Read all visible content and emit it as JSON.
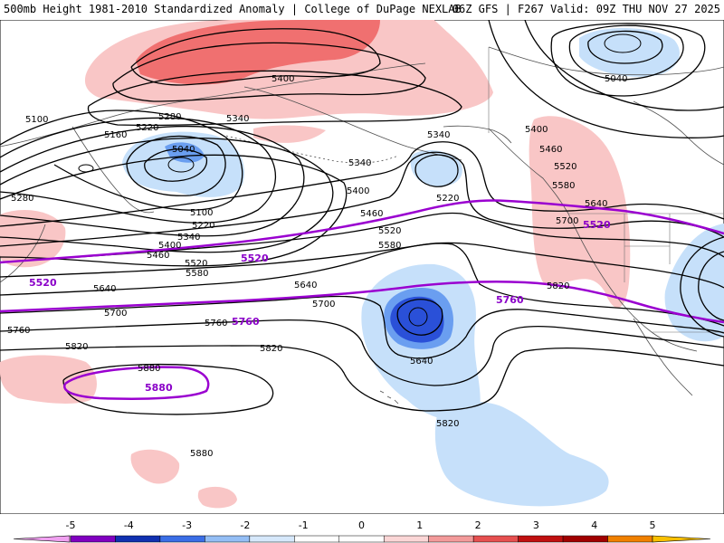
{
  "header": {
    "title_left": "500mb Height 1981-2010 Standardized Anomaly | College of DuPage NEXLAB",
    "title_right": "06Z GFS | F267 Valid: 09Z THU NOV 27 2025"
  },
  "colors": {
    "ref_line": "#9a00d0",
    "contour": "#000000",
    "coast": "#505050",
    "anom_neg1": "#c6e0fa",
    "anom_neg2": "#6a9ef0",
    "anom_neg3": "#2a50d8",
    "anom_pos1": "#f9c6c6",
    "anom_pos2": "#f07070"
  },
  "contour_labels": [
    {
      "id": "l5400a",
      "text": "5400"
    },
    {
      "id": "l5040a",
      "text": "5040"
    },
    {
      "id": "l5100a",
      "text": "5100"
    },
    {
      "id": "l5280a",
      "text": "5280"
    },
    {
      "id": "l5340a",
      "text": "5340"
    },
    {
      "id": "l5220a",
      "text": "5220"
    },
    {
      "id": "l5160a",
      "text": "5160"
    },
    {
      "id": "l5040b",
      "text": "5040"
    },
    {
      "id": "l5280b",
      "text": "5280"
    },
    {
      "id": "l5100b",
      "text": "5100"
    },
    {
      "id": "l5220b",
      "text": "5220"
    },
    {
      "id": "l5340b",
      "text": "5340"
    },
    {
      "id": "l5400b",
      "text": "5400"
    },
    {
      "id": "l5460a",
      "text": "5460"
    },
    {
      "id": "l5520a",
      "text": "5520"
    },
    {
      "id": "l5580a",
      "text": "5580"
    },
    {
      "id": "l5340c",
      "text": "5340"
    },
    {
      "id": "l5340d",
      "text": "5340"
    },
    {
      "id": "l5400c",
      "text": "5400"
    },
    {
      "id": "l5220c",
      "text": "5220"
    },
    {
      "id": "l5460b",
      "text": "5460"
    },
    {
      "id": "l5520b",
      "text": "5520"
    },
    {
      "id": "l5580b",
      "text": "5580"
    },
    {
      "id": "l5400d",
      "text": "5400"
    },
    {
      "id": "l5460c",
      "text": "5460"
    },
    {
      "id": "l5520c",
      "text": "5520"
    },
    {
      "id": "l5580c",
      "text": "5580"
    },
    {
      "id": "l5640a",
      "text": "5640"
    },
    {
      "id": "l5700a",
      "text": "5700"
    },
    {
      "id": "l5640b",
      "text": "5640"
    },
    {
      "id": "l5700b",
      "text": "5700"
    },
    {
      "id": "l5760a",
      "text": "5760"
    },
    {
      "id": "l5640c",
      "text": "5640"
    },
    {
      "id": "l5700c",
      "text": "5700"
    },
    {
      "id": "l5760b",
      "text": "5760"
    },
    {
      "id": "l5820a",
      "text": "5820"
    },
    {
      "id": "l5820b",
      "text": "5820"
    },
    {
      "id": "l5640d",
      "text": "5640"
    },
    {
      "id": "l5820c",
      "text": "5820"
    },
    {
      "id": "l5880a",
      "text": "5880"
    },
    {
      "id": "l5880b",
      "text": "5880"
    },
    {
      "id": "l5820d",
      "text": "5820"
    }
  ],
  "ref_labels": [
    {
      "id": "r5520a",
      "text": "5520"
    },
    {
      "id": "r5520b",
      "text": "5520"
    },
    {
      "id": "r5520c",
      "text": "5520"
    },
    {
      "id": "r5760a",
      "text": "5760"
    },
    {
      "id": "r5760b",
      "text": "5760"
    },
    {
      "id": "r5880",
      "text": "5880"
    }
  ],
  "colorbar": {
    "ticks": [
      "-5",
      "-4",
      "-3",
      "-2",
      "-1",
      "0",
      "1",
      "2",
      "3",
      "4",
      "5"
    ],
    "colors": [
      "#f0a0f0",
      "#8000c0",
      "#1030b0",
      "#3a6ee6",
      "#94bef5",
      "#d6e8fb",
      "#ffffff",
      "#ffffff",
      "#fbd6d6",
      "#f39a9a",
      "#e65050",
      "#c01010",
      "#a00000",
      "#f08000",
      "#f8c000"
    ]
  }
}
